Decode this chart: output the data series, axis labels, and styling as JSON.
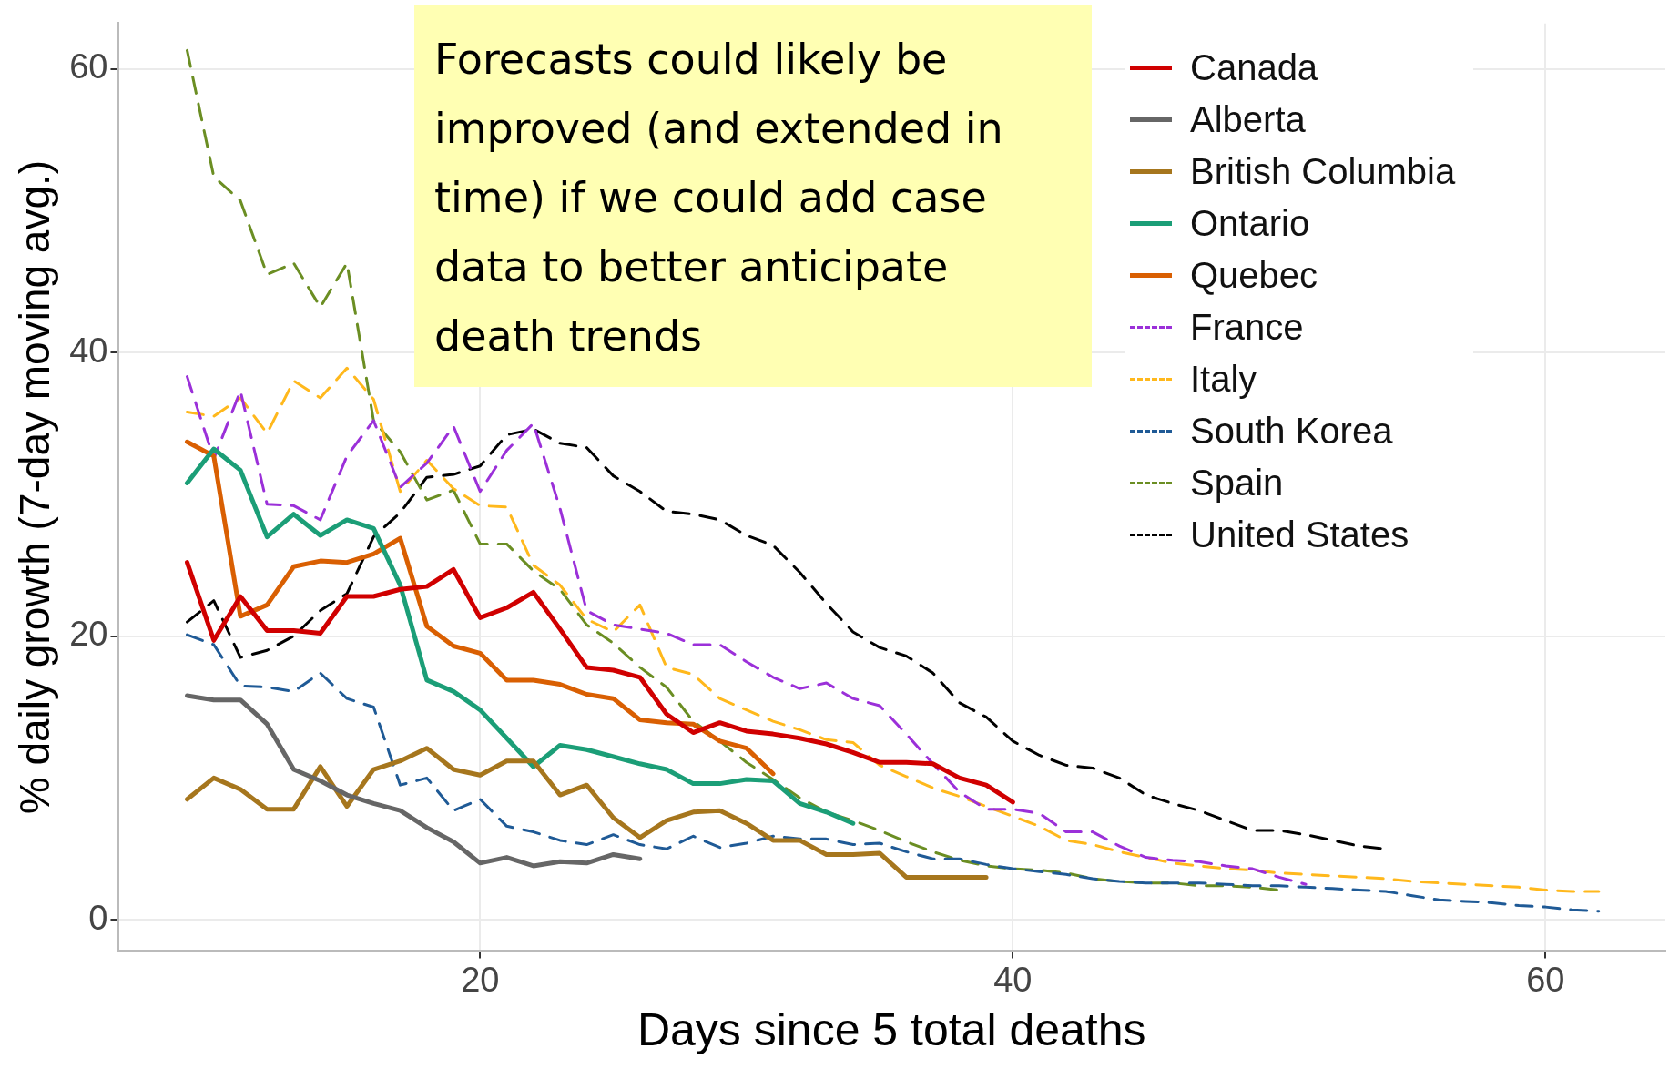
{
  "chart_data": {
    "type": "line",
    "xlabel": "Days since 5 total deaths",
    "ylabel": "% daily growth (7-day moving avg.)",
    "annotations": [
      "Forecasts could likely be improved (and extended in time) if we could add case data to better anticipate death trends"
    ],
    "x": [
      9,
      10,
      11,
      12,
      13,
      14,
      15,
      16,
      17,
      18,
      19,
      20,
      21,
      22,
      23,
      24,
      25,
      26,
      27,
      28,
      29,
      30,
      31,
      32,
      33,
      34,
      35,
      36,
      37,
      38,
      39,
      40,
      41,
      42,
      43,
      44,
      45,
      46,
      47,
      48,
      49,
      50,
      51,
      52,
      53,
      54,
      55,
      56,
      57,
      58,
      59,
      60,
      61,
      62
    ],
    "xlim": [
      6.4,
      64.5
    ],
    "xticks": [
      20,
      40,
      60
    ],
    "ylim": [
      -2.2,
      63.2
    ],
    "yticks": [
      0,
      20,
      40,
      60
    ],
    "grid": true,
    "legend": "top right",
    "marker": "none",
    "series": [
      {
        "name": "Canada",
        "color": "#d00000",
        "line_style": "solid",
        "values": [
          25.2,
          19.7,
          22.8,
          20.4,
          20.4,
          20.2,
          22.8,
          22.8,
          23.3,
          23.5,
          24.7,
          21.3,
          22,
          23.1,
          20.5,
          17.8,
          17.6,
          17.1,
          14.5,
          13.2,
          13.9,
          13.3,
          13.1,
          12.8,
          12.4,
          11.8,
          11.1,
          11.1,
          11,
          10,
          9.5,
          8.3,
          null,
          null,
          null,
          null,
          null,
          null,
          null,
          null,
          null,
          null,
          null,
          null,
          null,
          null,
          null,
          null,
          null,
          null,
          null,
          null,
          null,
          null
        ]
      },
      {
        "name": "Alberta",
        "color": "#666666",
        "line_style": "solid",
        "values": [
          15.8,
          15.5,
          15.5,
          13.8,
          10.6,
          9.8,
          8.8,
          8.2,
          7.7,
          6.5,
          5.5,
          4,
          4.4,
          3.8,
          4.1,
          4,
          4.6,
          4.3,
          null,
          null,
          null,
          null,
          null,
          null,
          null,
          null,
          null,
          null,
          null,
          null,
          null,
          null,
          null,
          null,
          null,
          null,
          null,
          null,
          null,
          null,
          null,
          null,
          null,
          null,
          null,
          null,
          null,
          null,
          null,
          null,
          null,
          null,
          null,
          null
        ]
      },
      {
        "name": "British Columbia",
        "color": "#a6761d",
        "line_style": "solid",
        "values": [
          8.5,
          10,
          9.2,
          7.8,
          7.8,
          10.8,
          8,
          10.6,
          11.2,
          12.1,
          10.6,
          10.2,
          11.2,
          11.2,
          8.8,
          9.5,
          7.2,
          5.8,
          7,
          7.6,
          7.7,
          6.8,
          5.6,
          5.6,
          4.6,
          4.6,
          4.7,
          3,
          3,
          3,
          3,
          null,
          null,
          null,
          null,
          null,
          null,
          null,
          null,
          null,
          null,
          null,
          null,
          null,
          null,
          null,
          null,
          null,
          null,
          null,
          null,
          null,
          null,
          null
        ]
      },
      {
        "name": "Ontario",
        "color": "#1b9e77",
        "line_style": "solid",
        "values": [
          30.8,
          33.2,
          31.7,
          27,
          28.6,
          27.1,
          28.2,
          27.6,
          23.6,
          16.9,
          16.1,
          14.8,
          12.8,
          10.8,
          12.3,
          12,
          11.5,
          11,
          10.6,
          9.6,
          9.6,
          9.9,
          9.8,
          8.2,
          7.6,
          6.8,
          null,
          null,
          null,
          null,
          null,
          null,
          null,
          null,
          null,
          null,
          null,
          null,
          null,
          null,
          null,
          null,
          null,
          null,
          null,
          null,
          null,
          null,
          null,
          null,
          null,
          null,
          null,
          null
        ]
      },
      {
        "name": "Quebec",
        "color": "#d95f02",
        "line_style": "solid",
        "values": [
          33.7,
          32.7,
          21.4,
          22.2,
          24.9,
          25.3,
          25.2,
          25.8,
          26.9,
          20.7,
          19.3,
          18.8,
          16.9,
          16.9,
          16.6,
          15.9,
          15.6,
          14.1,
          13.9,
          13.8,
          12.6,
          12.1,
          10.3,
          null,
          null,
          null,
          null,
          null,
          null,
          null,
          null,
          null,
          null,
          null,
          null,
          null,
          null,
          null,
          null,
          null,
          null,
          null,
          null,
          null,
          null,
          null,
          null,
          null,
          null,
          null,
          null,
          null,
          null,
          null
        ]
      },
      {
        "name": "France",
        "color": "#9b30d9",
        "line_style": "dashed",
        "values": [
          38.3,
          32.5,
          37.3,
          29.3,
          29.2,
          28.2,
          32.7,
          35.2,
          30.5,
          32.2,
          34.8,
          30.2,
          33.1,
          35,
          29,
          21.8,
          20.8,
          20.5,
          20.2,
          19.4,
          19.4,
          18.2,
          17.1,
          16.3,
          16.7,
          15.6,
          15.1,
          13.1,
          11,
          9,
          7.8,
          7.8,
          7.5,
          6.2,
          6.2,
          5.2,
          4.4,
          4.2,
          4.1,
          3.8,
          3.6,
          3,
          2.5,
          null,
          null,
          null,
          null,
          null,
          null,
          null,
          null,
          null,
          null,
          null
        ]
      },
      {
        "name": "Italy",
        "color": "#ffb81c",
        "line_style": "dashed",
        "values": [
          35.8,
          35.5,
          36.8,
          34.3,
          38,
          36.8,
          38.9,
          36.7,
          30.2,
          32.4,
          30.4,
          29.2,
          29.1,
          25,
          23.6,
          21.2,
          20.3,
          22.2,
          17.8,
          17.3,
          15.6,
          14.8,
          14,
          13.4,
          12.7,
          12.5,
          10.9,
          10.1,
          9.3,
          8.7,
          8,
          7.3,
          6.6,
          5.6,
          5.3,
          4.8,
          4.4,
          4,
          3.8,
          3.6,
          3.5,
          3.3,
          3.2,
          3.1,
          3,
          2.9,
          2.7,
          2.6,
          2.5,
          2.4,
          2.3,
          2.1,
          2,
          2
        ]
      },
      {
        "name": "South Korea",
        "color": "#1f5a96",
        "line_style": "dashed",
        "values": [
          20.1,
          19.4,
          16.5,
          16.4,
          16.1,
          17.4,
          15.6,
          15,
          9.5,
          10,
          7.7,
          8.5,
          6.6,
          6.2,
          5.6,
          5.3,
          6,
          5.3,
          5,
          5.9,
          5.1,
          5.4,
          5.9,
          5.7,
          5.7,
          5.3,
          5.4,
          4.8,
          4.3,
          4.3,
          3.9,
          3.6,
          3.4,
          3.2,
          2.9,
          2.7,
          2.6,
          2.6,
          2.6,
          2.5,
          2.4,
          2.4,
          2.3,
          2.2,
          2.1,
          2,
          1.7,
          1.4,
          1.3,
          1.2,
          1,
          0.9,
          0.7,
          0.6
        ]
      },
      {
        "name": "Spain",
        "color": "#6b8e23",
        "line_style": "dashed",
        "values": [
          61.3,
          52.4,
          50.7,
          45.5,
          46.3,
          43.2,
          46.3,
          35.2,
          33,
          29.6,
          30.3,
          26.5,
          26.5,
          24.6,
          23.3,
          20.8,
          19.5,
          17.8,
          16.4,
          14,
          12.6,
          11.1,
          9.9,
          8.6,
          7.6,
          7,
          6.3,
          5.5,
          4.8,
          4.2,
          3.8,
          3.6,
          3.5,
          3.3,
          2.9,
          2.7,
          2.6,
          2.6,
          2.4,
          2.4,
          2.3,
          2.1,
          null,
          null,
          null,
          null,
          null,
          null,
          null,
          null,
          null,
          null,
          null,
          null
        ]
      },
      {
        "name": "United States",
        "color": "#000000",
        "line_style": "dashed",
        "values": [
          21,
          22.5,
          18.5,
          19,
          20,
          21.8,
          23,
          27,
          28.7,
          31.2,
          31.4,
          32,
          34.2,
          34.6,
          33.6,
          33.3,
          31.3,
          30.2,
          28.8,
          28.6,
          28.2,
          27.1,
          26.4,
          24.5,
          22.3,
          20.3,
          19.2,
          18.6,
          17.4,
          15.3,
          14.3,
          12.6,
          11.6,
          10.9,
          10.7,
          10,
          8.8,
          8.2,
          7.7,
          7,
          6.3,
          6.3,
          6,
          5.6,
          5.2,
          5,
          null,
          null,
          null,
          null,
          null,
          null,
          null,
          null
        ]
      }
    ]
  }
}
